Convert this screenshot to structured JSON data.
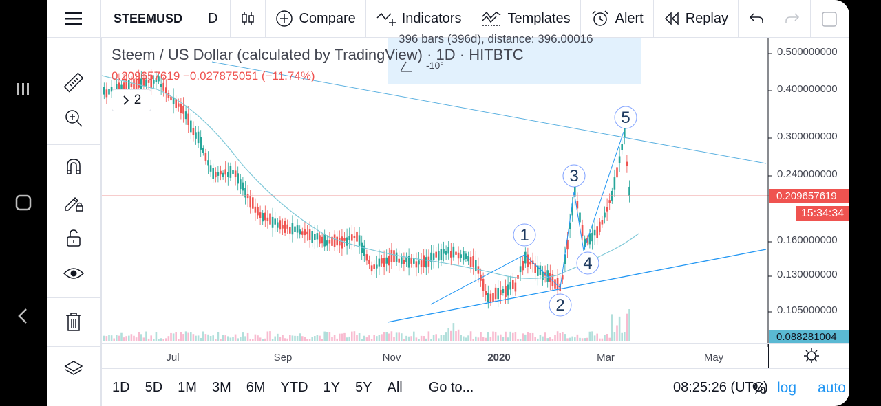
{
  "toolbar": {
    "symbol": "STEEMUSD",
    "interval": "D",
    "compare": "Compare",
    "indicators": "Indicators",
    "templates": "Templates",
    "alert": "Alert",
    "replay": "Replay"
  },
  "legend": {
    "title": "Steem / US Dollar (calculated by TradingView) · 1D · HITBTC",
    "price": "0.209657619 −0.027875051 (−11.74%)",
    "collapsed_count": "2"
  },
  "measure_tooltip": {
    "line1": "396 bars (396d), distance: 396.00016",
    "line2": "-10°"
  },
  "price_axis": {
    "labels": [
      "0.500000000",
      "0.400000000",
      "0.300000000",
      "0.240000000",
      "0.160000000",
      "0.130000000",
      "0.105000000"
    ],
    "current_price": "0.209657619",
    "countdown": "15:34:34",
    "low_label": "0.088281004"
  },
  "wave_labels": [
    "1",
    "2",
    "3",
    "4",
    "5"
  ],
  "time_axis": {
    "labels": [
      "Jul",
      "Sep",
      "Nov",
      "2020",
      "Mar",
      "May"
    ]
  },
  "bottom_bar": {
    "ranges": [
      "1D",
      "5D",
      "1M",
      "3M",
      "6M",
      "YTD",
      "1Y",
      "5Y",
      "All"
    ],
    "goto": "Go to...",
    "clock": "08:25:26 (UTC)",
    "percent": "%",
    "log": "log",
    "auto": "auto"
  },
  "colors": {
    "up": "#26a69a",
    "down": "#ef5350",
    "trendline": "#2196f3",
    "ma": "#7fc8d8",
    "accent": "#2196f3"
  }
}
